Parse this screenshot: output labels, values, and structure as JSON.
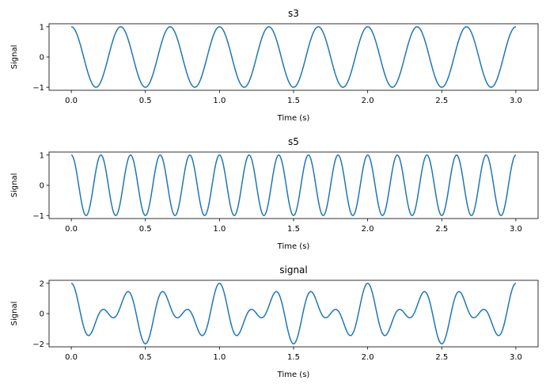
{
  "chart_data": [
    {
      "type": "line",
      "title": "s3",
      "xlabel": "Time (s)",
      "ylabel": "Signal",
      "xlim": [
        -0.15,
        3.15
      ],
      "ylim": [
        -1.1,
        1.1
      ],
      "xticks": [
        0.0,
        0.5,
        1.0,
        1.5,
        2.0,
        2.5,
        3.0
      ],
      "xtick_labels": [
        "0.0",
        "0.5",
        "1.0",
        "1.5",
        "2.0",
        "2.5",
        "3.0"
      ],
      "yticks": [
        -1,
        0,
        1
      ],
      "ytick_labels": [
        "−1",
        "0",
        "1"
      ],
      "grid": false,
      "series": [
        {
          "color": "#1f77b4",
          "function": "cos(2*pi*f*t)",
          "frequency_hz": 3,
          "amplitude": 1,
          "t_range": [
            0,
            3
          ]
        }
      ]
    },
    {
      "type": "line",
      "title": "s5",
      "xlabel": "Time (s)",
      "ylabel": "Signal",
      "xlim": [
        -0.15,
        3.15
      ],
      "ylim": [
        -1.1,
        1.1
      ],
      "xticks": [
        0.0,
        0.5,
        1.0,
        1.5,
        2.0,
        2.5,
        3.0
      ],
      "xtick_labels": [
        "0.0",
        "0.5",
        "1.0",
        "1.5",
        "2.0",
        "2.5",
        "3.0"
      ],
      "yticks": [
        -1,
        0,
        1
      ],
      "ytick_labels": [
        "−1",
        "0",
        "1"
      ],
      "grid": false,
      "series": [
        {
          "color": "#1f77b4",
          "function": "cos(2*pi*f*t)",
          "frequency_hz": 5,
          "amplitude": 1,
          "t_range": [
            0,
            3
          ]
        }
      ]
    },
    {
      "type": "line",
      "title": "signal",
      "xlabel": "Time (s)",
      "ylabel": "Signal",
      "xlim": [
        -0.15,
        3.15
      ],
      "ylim": [
        -2.2,
        2.2
      ],
      "xticks": [
        0.0,
        0.5,
        1.0,
        1.5,
        2.0,
        2.5,
        3.0
      ],
      "xtick_labels": [
        "0.0",
        "0.5",
        "1.0",
        "1.5",
        "2.0",
        "2.5",
        "3.0"
      ],
      "yticks": [
        -2,
        0,
        2
      ],
      "ytick_labels": [
        "−2",
        "0",
        "2"
      ],
      "grid": false,
      "series": [
        {
          "color": "#1f77b4",
          "function": "cos(2*pi*3*t) + cos(2*pi*5*t)",
          "components_hz": [
            3,
            5
          ],
          "t_range": [
            0,
            3
          ]
        }
      ]
    }
  ]
}
